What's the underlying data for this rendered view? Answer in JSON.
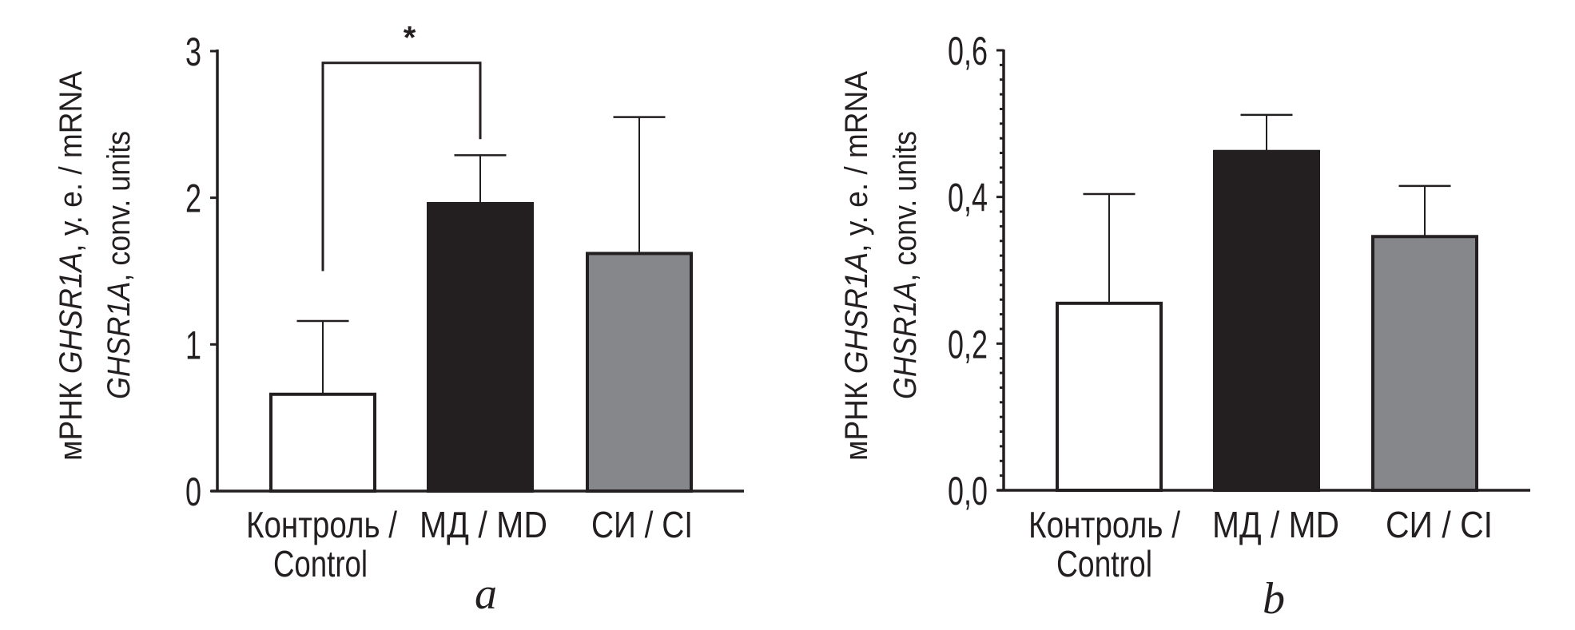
{
  "figure": {
    "colors": {
      "ink": "#231f20",
      "control_fill": "#ffffff",
      "md_fill": "#231f20",
      "ci_fill": "#86878b",
      "background": "#ffffff"
    }
  },
  "chart_data": [
    {
      "type": "bar",
      "panel": "a",
      "panel_label": "a",
      "title": "",
      "ylabel_line1_prefix": "мРНК ",
      "ylabel_line1_italic": "GHSR1A",
      "ylabel_line1_suffix": ", у. е. / mRNA",
      "ylabel_line2_italic": "GHSR1A",
      "ylabel_line2_suffix": ", conv. units",
      "xlabel": "",
      "categories": [
        [
          "Контроль /",
          "Control"
        ],
        [
          "МД / MD"
        ],
        [
          "СИ / CI"
        ]
      ],
      "values": [
        0.66,
        1.96,
        1.62
      ],
      "error_upper": [
        1.16,
        2.29,
        2.55
      ],
      "ylim": [
        0,
        3
      ],
      "yticks": [
        0,
        1,
        2,
        3
      ],
      "ytick_labels": [
        "0",
        "1",
        "2",
        "3"
      ],
      "minor_ticks": false,
      "grid": false,
      "legend": "none",
      "significance": {
        "between": [
          0,
          1
        ],
        "label": "*",
        "bracket_top": 2.92,
        "left_end": 1.5,
        "right_end": 2.4
      }
    },
    {
      "type": "bar",
      "panel": "b",
      "panel_label": "b",
      "title": "",
      "ylabel_line1_prefix": "мРНК ",
      "ylabel_line1_italic": "GHSR1A",
      "ylabel_line1_suffix": ", у. е. / mRNA",
      "ylabel_line2_italic": "GHSR1A",
      "ylabel_line2_suffix": ", conv. units",
      "xlabel": "",
      "categories": [
        [
          "Контроль /",
          "Control"
        ],
        [
          "МД / MD"
        ],
        [
          "СИ / CI"
        ]
      ],
      "values": [
        0.255,
        0.462,
        0.346
      ],
      "error_upper": [
        0.404,
        0.512,
        0.415
      ],
      "ylim": [
        0,
        0.6
      ],
      "yticks": [
        0,
        0.2,
        0.4,
        0.6
      ],
      "ytick_labels": [
        "0,0",
        "0,2",
        "0,4",
        "0,6"
      ],
      "minor_tick_step": 0.02,
      "minor_ticks": true,
      "grid": false,
      "legend": "none"
    }
  ]
}
